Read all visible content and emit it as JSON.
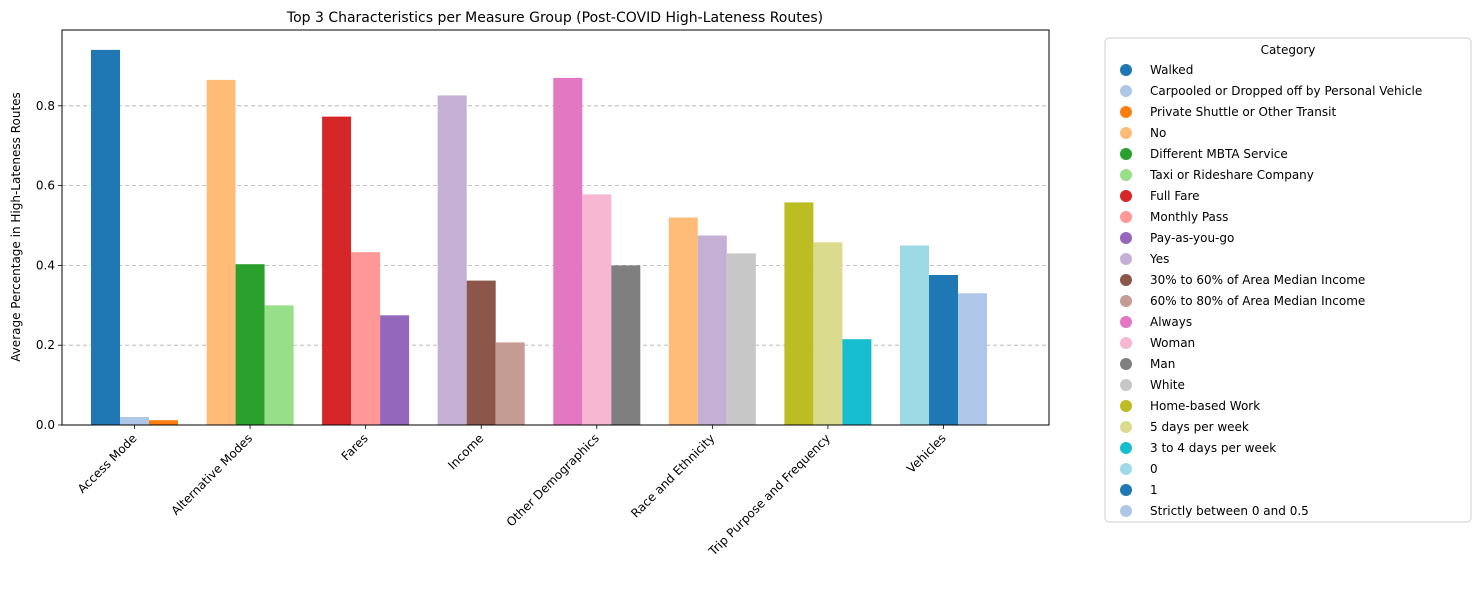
{
  "chart_data": {
    "type": "bar",
    "title": "Top 3 Characteristics per Measure Group (Post-COVID High-Lateness Routes)",
    "xlabel": "",
    "ylabel": "Average Percentage in High-Lateness Routes",
    "ylim": [
      0,
      0.99
    ],
    "yticks": [
      "0.0",
      "0.2",
      "0.4",
      "0.6",
      "0.8"
    ],
    "grid": "y-dashed",
    "legend_title": "Category",
    "legend_placement": "outside-right",
    "categories": [
      "Access Mode",
      "Alternative Modes",
      "Fares",
      "Income",
      "Other Demographics",
      "Race and Ethnicity",
      "Trip Purpose and Frequency",
      "Vehicles"
    ],
    "groups": [
      {
        "group": "Access Mode",
        "bars": [
          {
            "category": "Walked",
            "value": 0.94
          },
          {
            "category": "Carpooled or Dropped off by Personal Vehicle",
            "value": 0.02
          },
          {
            "category": "Private Shuttle or Other Transit",
            "value": 0.012
          }
        ]
      },
      {
        "group": "Alternative Modes",
        "bars": [
          {
            "category": "No",
            "value": 0.865
          },
          {
            "category": "Different MBTA Service",
            "value": 0.403
          },
          {
            "category": "Taxi or Rideshare Company",
            "value": 0.3
          }
        ]
      },
      {
        "group": "Fares",
        "bars": [
          {
            "category": "Full Fare",
            "value": 0.773
          },
          {
            "category": "Monthly Pass",
            "value": 0.433
          },
          {
            "category": "Pay-as-you-go",
            "value": 0.275
          }
        ]
      },
      {
        "group": "Income",
        "bars": [
          {
            "category": "Yes",
            "value": 0.826
          },
          {
            "category": "30% to 60% of Area Median Income",
            "value": 0.362
          },
          {
            "category": "60% to 80% of Area Median Income",
            "value": 0.207
          }
        ]
      },
      {
        "group": "Other Demographics",
        "bars": [
          {
            "category": "Always",
            "value": 0.87
          },
          {
            "category": "Woman",
            "value": 0.578
          },
          {
            "category": "Man",
            "value": 0.4
          }
        ]
      },
      {
        "group": "Race and Ethnicity",
        "bars": [
          {
            "category": "No",
            "value": 0.52
          },
          {
            "category": "Yes",
            "value": 0.475
          },
          {
            "category": "White",
            "value": 0.43
          }
        ]
      },
      {
        "group": "Trip Purpose and Frequency",
        "bars": [
          {
            "category": "Home-based Work",
            "value": 0.558
          },
          {
            "category": "5 days per week",
            "value": 0.458
          },
          {
            "category": "3 to 4 days per week",
            "value": 0.215
          }
        ]
      },
      {
        "group": "Vehicles",
        "bars": [
          {
            "category": "0",
            "value": 0.45
          },
          {
            "category": "1",
            "value": 0.376
          },
          {
            "category": "Strictly between 0 and 0.5",
            "value": 0.33
          }
        ]
      }
    ],
    "legend": [
      {
        "label": "Walked",
        "color": "#1f77b4"
      },
      {
        "label": "Carpooled or Dropped off by Personal Vehicle",
        "color": "#aec7e8"
      },
      {
        "label": "Private Shuttle or Other Transit",
        "color": "#ff7f0e"
      },
      {
        "label": "No",
        "color": "#ffbb78"
      },
      {
        "label": "Different MBTA Service",
        "color": "#2ca02c"
      },
      {
        "label": "Taxi or Rideshare Company",
        "color": "#98df8a"
      },
      {
        "label": "Full Fare",
        "color": "#d62728"
      },
      {
        "label": "Monthly Pass",
        "color": "#ff9896"
      },
      {
        "label": "Pay-as-you-go",
        "color": "#9467bd"
      },
      {
        "label": "Yes",
        "color": "#c5b0d5"
      },
      {
        "label": "30% to 60% of Area Median Income",
        "color": "#8c564b"
      },
      {
        "label": "60% to 80% of Area Median Income",
        "color": "#c49c94"
      },
      {
        "label": "Always",
        "color": "#e377c2"
      },
      {
        "label": "Woman",
        "color": "#f7b6d2"
      },
      {
        "label": "Man",
        "color": "#7f7f7f"
      },
      {
        "label": "White",
        "color": "#c7c7c7"
      },
      {
        "label": "Home-based Work",
        "color": "#bcbd22"
      },
      {
        "label": "5 days per week",
        "color": "#dbdb8d"
      },
      {
        "label": "3 to 4 days per week",
        "color": "#17becf"
      },
      {
        "label": "0",
        "color": "#9edae5"
      },
      {
        "label": "1",
        "color": "#1f77b4"
      },
      {
        "label": "Strictly between 0 and 0.5",
        "color": "#aec7e8"
      }
    ]
  }
}
